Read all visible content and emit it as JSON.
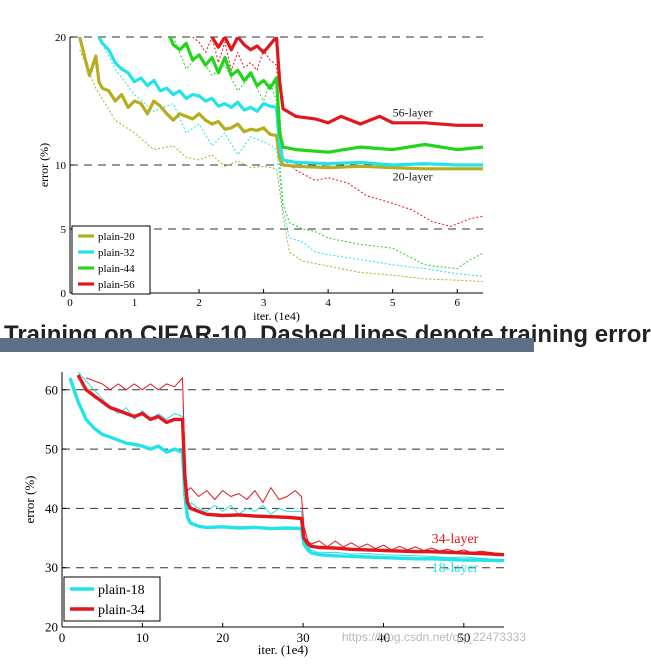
{
  "chart_data": [
    {
      "type": "line",
      "xlabel": "iter. (1e4)",
      "ylabel": "error (%)",
      "xlim": [
        0,
        6.4
      ],
      "ylim": [
        0,
        20
      ],
      "xticks": [
        0,
        1,
        2,
        3,
        4,
        5,
        6
      ],
      "yticks": [
        0,
        5,
        10,
        20
      ],
      "grid": "dashed horizontal at 5, 10, 20",
      "legend_position": "bottom-left",
      "annotations": [
        {
          "text": "56-layer",
          "x": 5.0,
          "y": 13.8,
          "color": "#1a1a1a"
        },
        {
          "text": "20-layer",
          "x": 5.0,
          "y": 8.8,
          "color": "#1a1a1a"
        }
      ],
      "series": [
        {
          "name": "plain-20",
          "color": "#b5ac1e",
          "kind": "test",
          "x": [
            0.15,
            0.25,
            0.3,
            0.4,
            0.45,
            0.5,
            0.6,
            0.7,
            0.8,
            0.9,
            1.0,
            1.1,
            1.2,
            1.3,
            1.4,
            1.5,
            1.6,
            1.7,
            1.8,
            1.9,
            2.0,
            2.1,
            2.2,
            2.3,
            2.4,
            2.5,
            2.6,
            2.7,
            2.8,
            2.9,
            3.0,
            3.1,
            3.2,
            3.25,
            3.3,
            3.5,
            4.0,
            4.5,
            5.0,
            5.5,
            6.0,
            6.4
          ],
          "y": [
            20,
            18,
            17,
            18.5,
            16.5,
            16,
            15.8,
            15,
            15.5,
            14.5,
            15,
            14.8,
            14,
            15,
            14.6,
            14,
            13.5,
            14,
            13.8,
            13.6,
            14,
            13.5,
            13.2,
            13.4,
            12.8,
            12.9,
            13.2,
            12.6,
            12.8,
            12.7,
            12.9,
            12.4,
            12.3,
            10.5,
            10.0,
            9.9,
            9.8,
            9.9,
            9.8,
            9.7,
            9.7,
            9.7
          ]
        },
        {
          "name": "plain-20",
          "color": "#b5ac1e",
          "kind": "train",
          "x": [
            0.15,
            0.4,
            0.7,
            1.0,
            1.3,
            1.6,
            1.8,
            2.0,
            2.2,
            2.4,
            2.6,
            2.8,
            3.0,
            3.1,
            3.2,
            3.25,
            3.3,
            3.4,
            3.6,
            3.8,
            4.0,
            4.5,
            5.0,
            5.5,
            6.0,
            6.4
          ],
          "y": [
            19,
            16,
            13.5,
            12.5,
            11.2,
            11.5,
            10.6,
            10.4,
            10.8,
            9.9,
            10.3,
            9.8,
            9.9,
            9.8,
            9.7,
            8.0,
            6.0,
            3.2,
            2.5,
            2.3,
            2.1,
            1.6,
            1.4,
            1.1,
            1.0,
            0.9
          ]
        },
        {
          "name": "plain-32",
          "color": "#22e2ea",
          "kind": "test",
          "x": [
            0.45,
            0.5,
            0.6,
            0.7,
            0.8,
            0.9,
            1.0,
            1.1,
            1.2,
            1.3,
            1.4,
            1.5,
            1.6,
            1.7,
            1.8,
            1.9,
            2.0,
            2.1,
            2.2,
            2.3,
            2.4,
            2.5,
            2.6,
            2.7,
            2.8,
            2.9,
            3.0,
            3.1,
            3.2,
            3.25,
            3.3,
            3.5,
            4.0,
            4.5,
            5.0,
            5.5,
            6.0,
            6.4
          ],
          "y": [
            20,
            19.5,
            19,
            18,
            17.5,
            17.2,
            16.5,
            16.8,
            16.2,
            16.6,
            15.8,
            16,
            15.5,
            15.8,
            15.2,
            15.5,
            15.4,
            15,
            15.2,
            14.6,
            14.8,
            14.5,
            14.9,
            14.3,
            14.5,
            14.2,
            14.8,
            14.6,
            14.5,
            11.5,
            10.4,
            10.2,
            10.1,
            10.2,
            10.0,
            10.1,
            10.0,
            10.0
          ]
        },
        {
          "name": "plain-32",
          "color": "#22e2ea",
          "kind": "train",
          "x": [
            0.45,
            0.7,
            1.0,
            1.3,
            1.6,
            1.8,
            2.0,
            2.2,
            2.4,
            2.6,
            2.8,
            3.0,
            3.1,
            3.2,
            3.25,
            3.3,
            3.4,
            3.6,
            3.8,
            4.0,
            4.5,
            5.0,
            5.5,
            6.0,
            6.4
          ],
          "y": [
            20,
            17.5,
            15.5,
            14.2,
            14.8,
            12.5,
            13.2,
            11.5,
            12.5,
            10.8,
            12.2,
            11.8,
            11.6,
            11.2,
            9.0,
            6.5,
            4.3,
            4.0,
            3.2,
            3.0,
            2.6,
            2.2,
            1.9,
            1.5,
            1.3
          ]
        },
        {
          "name": "plain-44",
          "color": "#22d41c",
          "kind": "test",
          "x": [
            1.55,
            1.6,
            1.7,
            1.8,
            1.9,
            2.0,
            2.1,
            2.2,
            2.3,
            2.4,
            2.5,
            2.6,
            2.7,
            2.8,
            2.9,
            3.0,
            3.1,
            3.2,
            3.25,
            3.3,
            3.5,
            4.0,
            4.5,
            5.0,
            5.5,
            6.0,
            6.4
          ],
          "y": [
            20,
            19.4,
            19,
            19.5,
            18.2,
            18.6,
            17.8,
            18.4,
            17.2,
            18.4,
            17.0,
            17.4,
            16.6,
            17.2,
            16.2,
            16.6,
            16.0,
            16.8,
            12.5,
            11.4,
            11.2,
            11.0,
            11.4,
            11.2,
            11.6,
            11.2,
            11.4
          ]
        },
        {
          "name": "plain-44",
          "color": "#22d41c",
          "kind": "train",
          "x": [
            1.6,
            1.8,
            2.0,
            2.2,
            2.4,
            2.6,
            2.8,
            3.0,
            3.1,
            3.2,
            3.25,
            3.3,
            3.4,
            3.6,
            3.8,
            4.0,
            4.5,
            5.0,
            5.5,
            6.0,
            6.2,
            6.4
          ],
          "y": [
            20,
            17.5,
            18.6,
            17.0,
            17.8,
            15.8,
            17.0,
            15.0,
            16.4,
            15.0,
            10.0,
            7.0,
            5.5,
            5.0,
            4.8,
            4.3,
            3.8,
            3.5,
            2.2,
            1.9,
            2.6,
            3.1
          ]
        },
        {
          "name": "plain-56",
          "color": "#e3161b",
          "kind": "test",
          "x": [
            2.2,
            2.3,
            2.4,
            2.5,
            2.6,
            2.7,
            2.8,
            2.9,
            3.0,
            3.1,
            3.2,
            3.25,
            3.3,
            3.5,
            3.8,
            4.0,
            4.2,
            4.5,
            4.8,
            5.0,
            5.5,
            6.0,
            6.4
          ],
          "y": [
            20,
            19.2,
            20,
            19.0,
            20,
            19.4,
            19.0,
            19.3,
            18.8,
            19.4,
            20,
            16.5,
            14.4,
            13.8,
            13.6,
            13.3,
            13.8,
            13.2,
            13.8,
            13.3,
            13.3,
            13.1,
            13.1
          ]
        },
        {
          "name": "plain-56",
          "color": "#e3161b",
          "kind": "train",
          "x": [
            1.9,
            2.0,
            2.1,
            2.2,
            2.3,
            2.4,
            2.5,
            2.6,
            2.7,
            2.8,
            2.9,
            3.0,
            3.1,
            3.2,
            3.25,
            3.3,
            3.5,
            3.8,
            4.0,
            4.3,
            4.6,
            5.0,
            5.3,
            5.6,
            5.9,
            6.2,
            6.4
          ],
          "y": [
            20,
            19.6,
            18.8,
            20,
            18.0,
            19.6,
            17.4,
            18.8,
            17.6,
            18.0,
            17.4,
            19.0,
            18.2,
            17.8,
            14.0,
            10.5,
            9.6,
            8.8,
            9.0,
            8.6,
            7.6,
            7.0,
            6.5,
            5.6,
            5.2,
            5.8,
            6.0
          ]
        }
      ]
    },
    {
      "type": "line",
      "xlabel": "iter. (1e4)",
      "ylabel": "error (%)",
      "xlim": [
        0,
        55
      ],
      "ylim": [
        20,
        63
      ],
      "xticks": [
        0,
        10,
        20,
        30,
        40,
        50
      ],
      "yticks": [
        20,
        30,
        40,
        50,
        60
      ],
      "grid": "dashed horizontal at 30, 40, 50, 60",
      "legend_position": "bottom-left",
      "annotations": [
        {
          "text": "34-layer",
          "x": 46,
          "y": 34.2,
          "color": "#e3161b"
        },
        {
          "text": "18-layer",
          "x": 46,
          "y": 29.3,
          "color": "#22e2ea"
        }
      ],
      "series": [
        {
          "name": "plain-18",
          "color": "#22e2ea",
          "kind": "test",
          "x": [
            1,
            2,
            3,
            4,
            5,
            6,
            7,
            8,
            9,
            10,
            11,
            12,
            13,
            14,
            15,
            15.3,
            15.6,
            16,
            17,
            18,
            20,
            22,
            24,
            26,
            28,
            29.8,
            30.1,
            30.6,
            31,
            32,
            34,
            36,
            38,
            40,
            42,
            44,
            46,
            48,
            50,
            52,
            55
          ],
          "y": [
            62,
            58,
            55,
            53.5,
            52.5,
            52,
            51.5,
            51,
            50.8,
            50.5,
            50,
            50.5,
            49.5,
            50,
            49.5,
            42,
            38.5,
            37.5,
            37,
            36.8,
            36.9,
            36.7,
            36.8,
            36.6,
            36.7,
            36.6,
            34,
            33,
            32.5,
            32.2,
            32,
            31.9,
            31.8,
            31.7,
            31.6,
            31.5,
            31.5,
            31.4,
            31.3,
            31.3,
            31.2
          ]
        },
        {
          "name": "plain-18",
          "color": "#22e2ea",
          "kind": "train",
          "x": [
            2,
            4,
            6,
            7,
            8,
            9,
            10,
            11,
            12,
            13,
            14,
            15,
            15.3,
            15.6,
            16,
            17,
            18,
            19,
            20,
            21,
            22,
            23,
            24,
            25,
            26,
            27,
            28,
            29.8,
            30.1,
            30.6,
            31,
            32,
            34,
            36,
            38,
            40,
            42,
            44,
            46,
            48,
            50,
            52,
            55
          ],
          "y": [
            63,
            60,
            57,
            56,
            57,
            55,
            56.5,
            55,
            56,
            55,
            56,
            55.5,
            44,
            40.5,
            41,
            40,
            39.5,
            40.5,
            39.5,
            40.5,
            39,
            40,
            39.5,
            40.5,
            39,
            40,
            39.5,
            39.5,
            35,
            33.5,
            33,
            32.5,
            32.6,
            32.3,
            32.4,
            32.2,
            32.1,
            32.0,
            31.9,
            31.7,
            31.8,
            31.6,
            31.3
          ]
        },
        {
          "name": "plain-34",
          "color": "#e3161b",
          "kind": "test",
          "x": [
            2,
            3,
            4,
            5,
            6,
            7,
            8,
            9,
            10,
            11,
            12,
            13,
            14,
            15,
            15.3,
            15.6,
            16,
            17,
            18,
            20,
            22,
            24,
            26,
            28,
            29.8,
            30.1,
            30.6,
            31,
            32,
            34,
            36,
            38,
            40,
            42,
            44,
            46,
            48,
            50,
            52,
            55
          ],
          "y": [
            62.5,
            60,
            59,
            58,
            57,
            56.5,
            56,
            55.5,
            56,
            55,
            55.5,
            54.5,
            55,
            55,
            45,
            41,
            40,
            39.5,
            39,
            38.8,
            38.9,
            38.7,
            38.6,
            38.5,
            38.3,
            35,
            34,
            33.6,
            33.4,
            33.3,
            33.1,
            33.0,
            32.9,
            32.8,
            32.7,
            32.7,
            32.6,
            32.5,
            32.4,
            32.2
          ]
        },
        {
          "name": "plain-34",
          "color": "#e3161b",
          "kind": "train",
          "x": [
            3,
            5,
            6,
            7,
            8,
            9,
            10,
            11,
            12,
            13,
            14,
            15,
            15.3,
            15.6,
            16,
            17,
            18,
            19,
            20,
            21,
            22,
            23,
            24,
            25,
            26,
            27,
            28,
            29,
            29.8,
            30.1,
            30.6,
            31,
            32,
            33,
            34,
            35,
            36,
            37,
            38,
            39,
            40,
            41,
            42,
            43,
            44,
            45,
            46,
            47,
            48,
            49,
            50,
            51,
            52,
            55
          ],
          "y": [
            62,
            61,
            60,
            61,
            60,
            61,
            60,
            61,
            60,
            61,
            60.5,
            62,
            47,
            43,
            43.5,
            42,
            43,
            41.5,
            43,
            42,
            42.5,
            41.5,
            43,
            41,
            43.5,
            41.5,
            42,
            43,
            42,
            37,
            34.5,
            34,
            34.5,
            33.5,
            34.5,
            33.5,
            34.2,
            33.4,
            34,
            33.2,
            33.8,
            33.0,
            33.6,
            33.0,
            33.5,
            32.9,
            33.3,
            32.8,
            33.1,
            32.7,
            33.0,
            32.5,
            32.8,
            32.3
          ]
        }
      ]
    }
  ],
  "partial_caption": "Training on CIFAR-10. Dashed lines denote training error",
  "watermark": "https://blog.csdn.net/qq_22473333"
}
